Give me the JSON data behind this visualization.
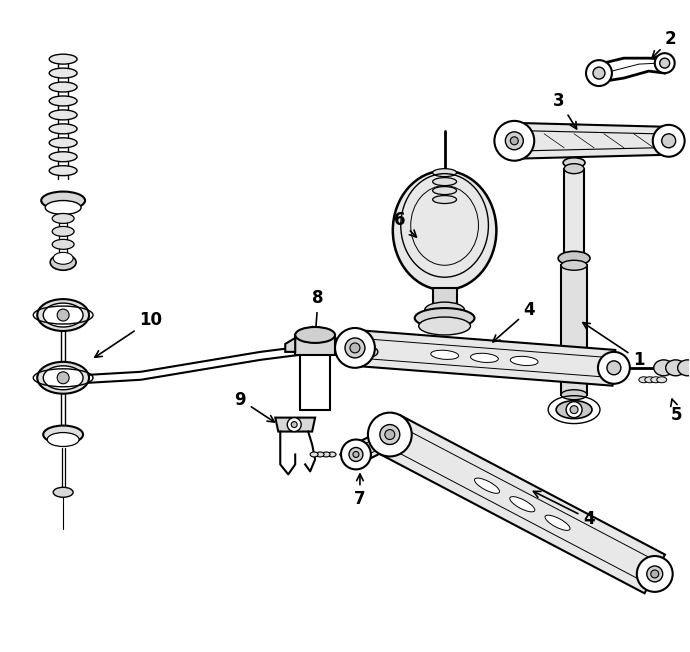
{
  "bg_color": "#ffffff",
  "line_color": "#000000",
  "fig_width": 6.9,
  "fig_height": 6.52,
  "dpi": 100,
  "label_fontsize": 12,
  "label_color": "#000000"
}
